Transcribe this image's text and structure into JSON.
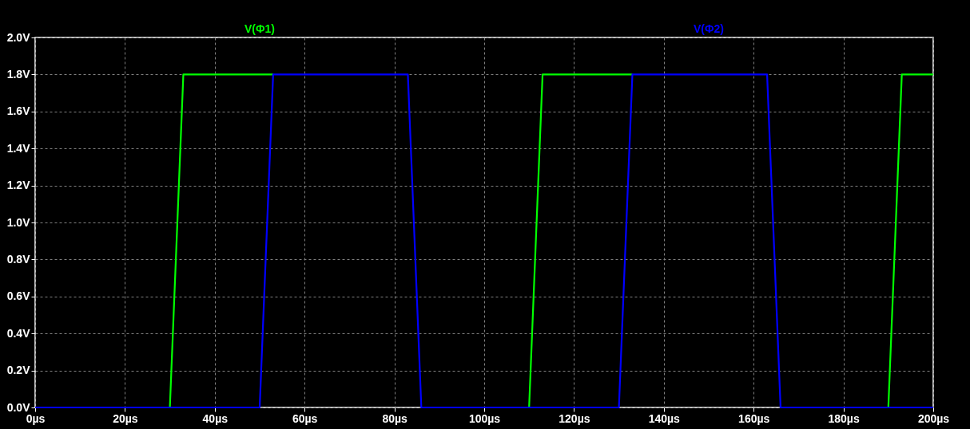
{
  "chart_data": {
    "type": "line",
    "xlim": [
      0,
      200
    ],
    "ylim": [
      0,
      2.0
    ],
    "xticks": [
      {
        "value": 0,
        "label": "0µs"
      },
      {
        "value": 20,
        "label": "20µs"
      },
      {
        "value": 40,
        "label": "40µs"
      },
      {
        "value": 60,
        "label": "60µs"
      },
      {
        "value": 80,
        "label": "80µs"
      },
      {
        "value": 100,
        "label": "100µs"
      },
      {
        "value": 120,
        "label": "120µs"
      },
      {
        "value": 140,
        "label": "140µs"
      },
      {
        "value": 160,
        "label": "160µs"
      },
      {
        "value": 180,
        "label": "180µs"
      },
      {
        "value": 200,
        "label": "200µs"
      }
    ],
    "yticks": [
      {
        "value": 0,
        "label": "0.0V"
      },
      {
        "value": 0.2,
        "label": "0.2V"
      },
      {
        "value": 0.4,
        "label": "0.4V"
      },
      {
        "value": 0.6,
        "label": "0.6V"
      },
      {
        "value": 0.8,
        "label": "0.8V"
      },
      {
        "value": 1.0,
        "label": "1.0V"
      },
      {
        "value": 1.2,
        "label": "1.2V"
      },
      {
        "value": 1.4,
        "label": "1.4V"
      },
      {
        "value": 1.6,
        "label": "1.6V"
      },
      {
        "value": 1.8,
        "label": "1.8V"
      },
      {
        "value": 2.0,
        "label": "2.0V"
      }
    ],
    "grid": true,
    "legend": "top",
    "line_style": "solid",
    "marker": "none",
    "series": [
      {
        "name": "V(Φ1)",
        "color": "#00ff00",
        "x": [
          30,
          33,
          53,
          54,
          110,
          113,
          133,
          134,
          190,
          193,
          200
        ],
        "values": [
          0,
          1.8,
          1.8,
          null,
          0,
          1.8,
          1.8,
          null,
          0,
          1.8,
          1.8
        ]
      },
      {
        "name": "V(Φ2)",
        "color": "#0000ff",
        "x": [
          0,
          50,
          53,
          83,
          86,
          130,
          133,
          163,
          166,
          200
        ],
        "values": [
          0,
          0,
          1.8,
          1.8,
          0,
          0,
          1.8,
          1.8,
          0,
          0
        ]
      }
    ]
  }
}
